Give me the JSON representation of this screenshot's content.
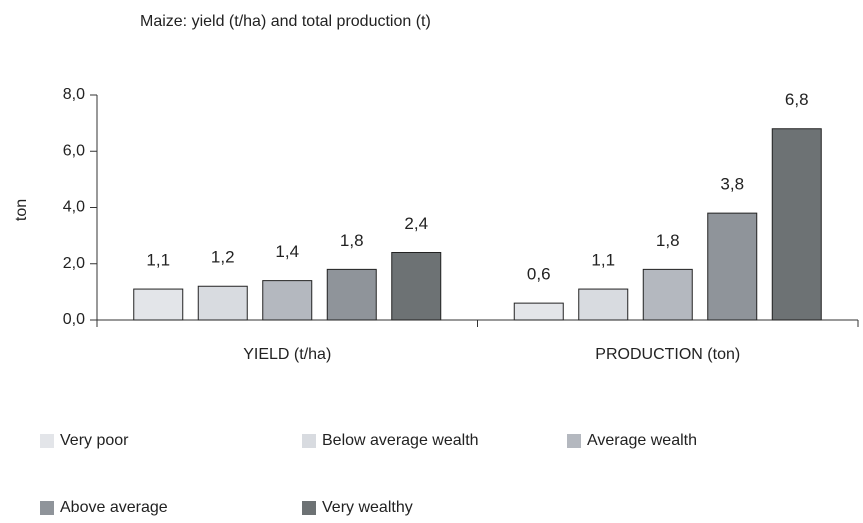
{
  "chart_data": {
    "type": "bar",
    "title": "Maize: yield (t/ha) and total production (t)",
    "y_label": "ton",
    "categories": [
      "YIELD (t/ha)",
      "PRODUCTION (ton)"
    ],
    "series": [
      {
        "name": "Very poor",
        "color": "#e3e5e9",
        "values": [
          1.1,
          0.6
        ],
        "value_labels": [
          "1,1",
          "0,6"
        ]
      },
      {
        "name": "Below average wealth",
        "color": "#d8dbe0",
        "values": [
          1.2,
          1.1
        ],
        "value_labels": [
          "1,2",
          "1,1"
        ]
      },
      {
        "name": "Average wealth",
        "color": "#b4b8bf",
        "values": [
          1.4,
          1.8
        ],
        "value_labels": [
          "1,4",
          "1,8"
        ]
      },
      {
        "name": "Above average",
        "color": "#8f949a",
        "values": [
          1.8,
          3.8
        ],
        "value_labels": [
          "1,8",
          "3,8"
        ]
      },
      {
        "name": "Very wealthy",
        "color": "#6d7274",
        "values": [
          2.4,
          6.8
        ],
        "value_labels": [
          "2,4",
          "6,8"
        ]
      }
    ],
    "ylim": [
      0,
      8
    ],
    "yticks": [
      {
        "value": 0,
        "label": "0,0"
      },
      {
        "value": 2,
        "label": "2,0"
      },
      {
        "value": 4,
        "label": "4,0"
      },
      {
        "value": 6,
        "label": "6,0"
      },
      {
        "value": 8,
        "label": "8,0"
      }
    ],
    "legend": "bottom"
  }
}
